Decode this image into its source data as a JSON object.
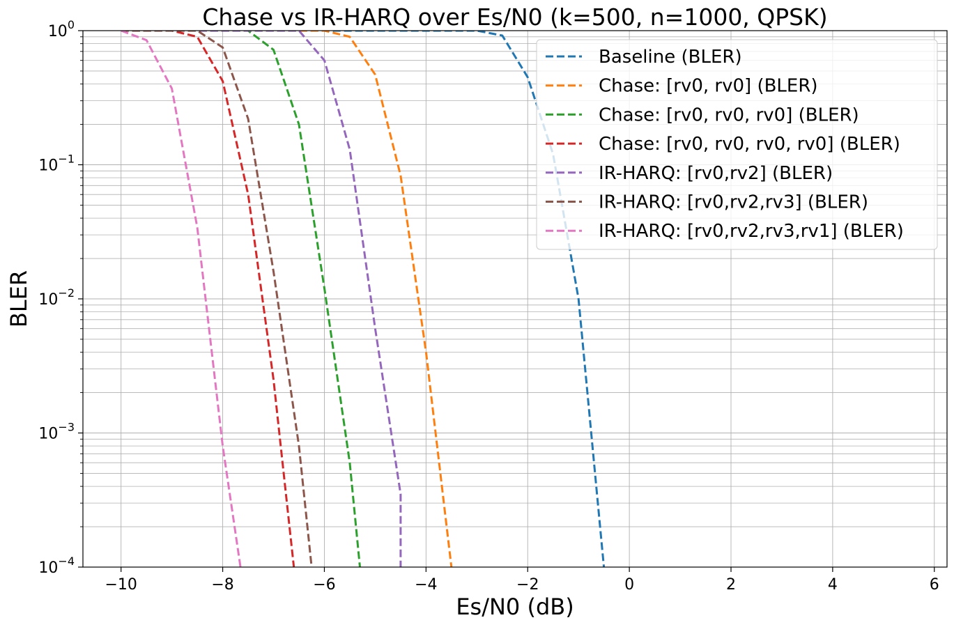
{
  "chart_data": {
    "type": "line",
    "title": "Chase vs IR-HARQ over Es/N0 (k=500, n=1000, QPSK)",
    "xlabel": "Es/N0 (dB)",
    "ylabel": "BLER",
    "xlim": [
      -10.75,
      6.25
    ],
    "ylim": [
      0.0001,
      1
    ],
    "yscale": "log",
    "grid": true,
    "legend_position": "top-right",
    "x_ticks": [
      -10,
      -8,
      -6,
      -4,
      -2,
      0,
      2,
      4,
      6
    ],
    "x_tick_labels": [
      "−10",
      "−8",
      "−6",
      "−4",
      "−2",
      "0",
      "2",
      "4",
      "6"
    ],
    "y_ticks": [
      {
        "value": 1,
        "base": "10",
        "exp": "0"
      },
      {
        "value": 0.1,
        "base": "10",
        "exp": "−1"
      },
      {
        "value": 0.01,
        "base": "10",
        "exp": "−2"
      },
      {
        "value": 0.001,
        "base": "10",
        "exp": "−3"
      },
      {
        "value": 0.0001,
        "base": "10",
        "exp": "−4"
      }
    ],
    "series": [
      {
        "name": "Baseline (BLER)",
        "color": "#1f77b4",
        "x": [
          -10,
          -3,
          -2.5,
          -2,
          -1.5,
          -1,
          -0.5
        ],
        "y": [
          1,
          1,
          0.92,
          0.45,
          0.12,
          0.01,
          0.0001
        ]
      },
      {
        "name": "Chase: [rv0, rv0] (BLER)",
        "color": "#ff7f0e",
        "x": [
          -10,
          -6,
          -5.5,
          -5,
          -4.5,
          -4,
          -3.5
        ],
        "y": [
          1,
          1,
          0.9,
          0.47,
          0.083,
          0.004,
          0.0001
        ]
      },
      {
        "name": "Chase: [rv0, rv0, rv0] (BLER)",
        "color": "#2ca02c",
        "x": [
          -10,
          -7.5,
          -7,
          -6.5,
          -6,
          -5.5,
          -5.3
        ],
        "y": [
          1,
          1,
          0.72,
          0.2,
          0.012,
          0.0006,
          0.0001
        ]
      },
      {
        "name": "Chase: [rv0, rv0, rv0, rv0] (BLER)",
        "color": "#d62728",
        "x": [
          -10,
          -9,
          -8.5,
          -8,
          -7.5,
          -7,
          -6.6
        ],
        "y": [
          1,
          1,
          0.9,
          0.42,
          0.06,
          0.0025,
          0.0001
        ]
      },
      {
        "name": "IR-HARQ: [rv0,rv2] (BLER)",
        "color": "#9467bd",
        "x": [
          -10,
          -6.5,
          -6,
          -5.5,
          -5,
          -4.5,
          -4.5
        ],
        "y": [
          1,
          1,
          0.6,
          0.13,
          0.006,
          0.00035,
          0.0001
        ]
      },
      {
        "name": "IR-HARQ: [rv0,rv2,rv3] (BLER)",
        "color": "#8c564b",
        "x": [
          -10,
          -8.5,
          -8,
          -7.5,
          -7,
          -6.5,
          -6.25
        ],
        "y": [
          1,
          1,
          0.75,
          0.22,
          0.016,
          0.0008,
          0.0001
        ]
      },
      {
        "name": "IR-HARQ: [rv0,rv2,rv3,rv1] (BLER)",
        "color": "#e377c2",
        "x": [
          -10,
          -9.5,
          -9,
          -8.5,
          -8,
          -7.65
        ],
        "y": [
          1,
          0.85,
          0.37,
          0.034,
          0.0008,
          0.0001
        ]
      }
    ]
  }
}
